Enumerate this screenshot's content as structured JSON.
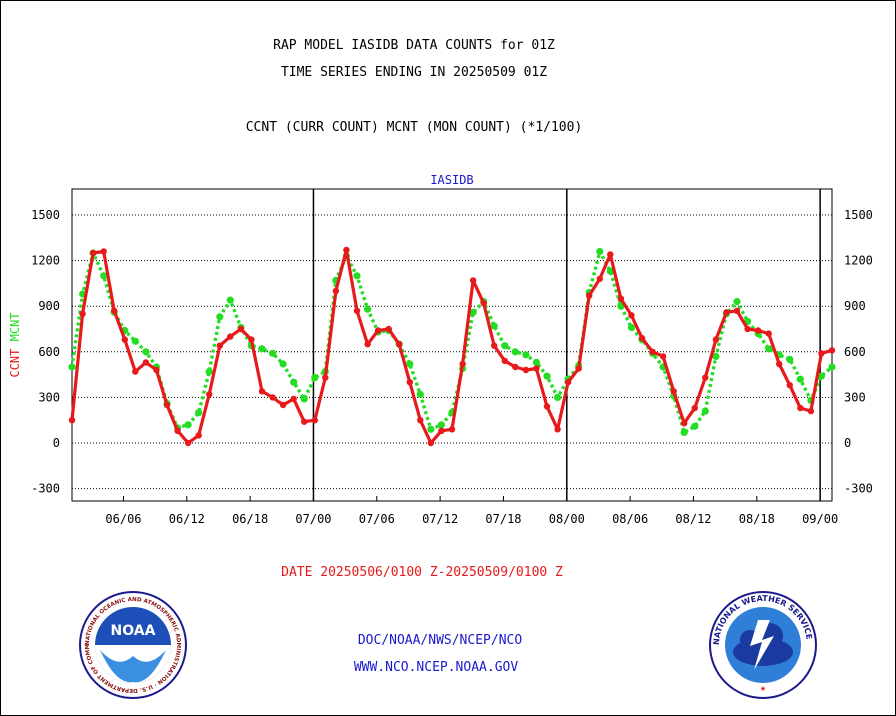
{
  "header": {
    "title_line1": "RAP MODEL IASIDB DATA COUNTS for 01Z",
    "title_line2": "TIME SERIES ENDING IN 20250509 01Z",
    "subtitle": "CCNT (CURR COUNT) MCNT (MON COUNT) (*1/100)"
  },
  "footer": {
    "date_range": "DATE 20250506/0100 Z-20250509/0100 Z",
    "org_path": "DOC/NOAA/NWS/NCEP/NCO",
    "website": "WWW.NCO.NCEP.NOAA.GOV"
  },
  "logos": {
    "noaa_text": "NOAA",
    "noaa_ring": "NATIONAL OCEANIC AND ATMOSPHERIC ADMINISTRATION · U.S. DEPARTMENT OF COMMERCE",
    "nws_ring": "NATIONAL WEATHER SERVICE"
  },
  "colors": {
    "ccnt": "#e8191b",
    "mcnt": "#22dd22",
    "title_blue": "#1a1acc"
  },
  "chart_data": {
    "type": "line",
    "title": "IASIDB",
    "ylabel_left": [
      "CCNT",
      "MCNT"
    ],
    "ylim": [
      -350,
      1650
    ],
    "yticks": [
      -300,
      0,
      300,
      600,
      900,
      1200,
      1500
    ],
    "xlim": [
      0,
      96
    ],
    "xticks": [
      {
        "x": 6.5,
        "label": "06/06"
      },
      {
        "x": 14.5,
        "label": "06/12"
      },
      {
        "x": 22.5,
        "label": "06/18"
      },
      {
        "x": 30.5,
        "label": "07/00"
      },
      {
        "x": 38.5,
        "label": "07/06"
      },
      {
        "x": 46.5,
        "label": "07/12"
      },
      {
        "x": 54.5,
        "label": "07/18"
      },
      {
        "x": 62.5,
        "label": "08/00"
      },
      {
        "x": 70.5,
        "label": "08/06"
      },
      {
        "x": 78.5,
        "label": "08/12"
      },
      {
        "x": 86.5,
        "label": "08/18"
      },
      {
        "x": 94.5,
        "label": "09/00"
      }
    ],
    "day_boundaries": [
      30.5,
      62.5,
      94.5
    ],
    "grid": "horizontal-dotted",
    "series": [
      {
        "name": "CCNT",
        "values": [
          150,
          850,
          1250,
          1260,
          870,
          680,
          470,
          530,
          480,
          250,
          80,
          0,
          50,
          320,
          640,
          700,
          750,
          680,
          340,
          300,
          250,
          290,
          140,
          150,
          430,
          1000,
          1270,
          870,
          650,
          740,
          750,
          650,
          400,
          150,
          0,
          80,
          90,
          520,
          1070,
          920,
          640,
          540,
          500,
          480,
          490,
          240,
          90,
          400,
          490,
          970,
          1080,
          1240,
          950,
          840,
          690,
          600,
          570,
          340,
          130,
          230,
          430,
          680,
          860,
          870,
          750,
          740,
          720,
          520,
          380,
          230,
          210,
          590,
          610
        ]
      },
      {
        "name": "MCNT",
        "values": [
          500,
          980,
          1250,
          1100,
          860,
          740,
          670,
          600,
          500,
          260,
          100,
          120,
          200,
          470,
          830,
          940,
          760,
          640,
          620,
          590,
          520,
          400,
          290,
          430,
          470,
          1070,
          1230,
          1100,
          880,
          730,
          740,
          650,
          520,
          320,
          90,
          120,
          200,
          490,
          860,
          930,
          770,
          640,
          600,
          580,
          530,
          440,
          300,
          420,
          510,
          990,
          1260,
          1130,
          900,
          760,
          680,
          590,
          500,
          310,
          70,
          110,
          210,
          570,
          850,
          930,
          800,
          720,
          620,
          580,
          550,
          420,
          280,
          440,
          500
        ]
      }
    ]
  }
}
